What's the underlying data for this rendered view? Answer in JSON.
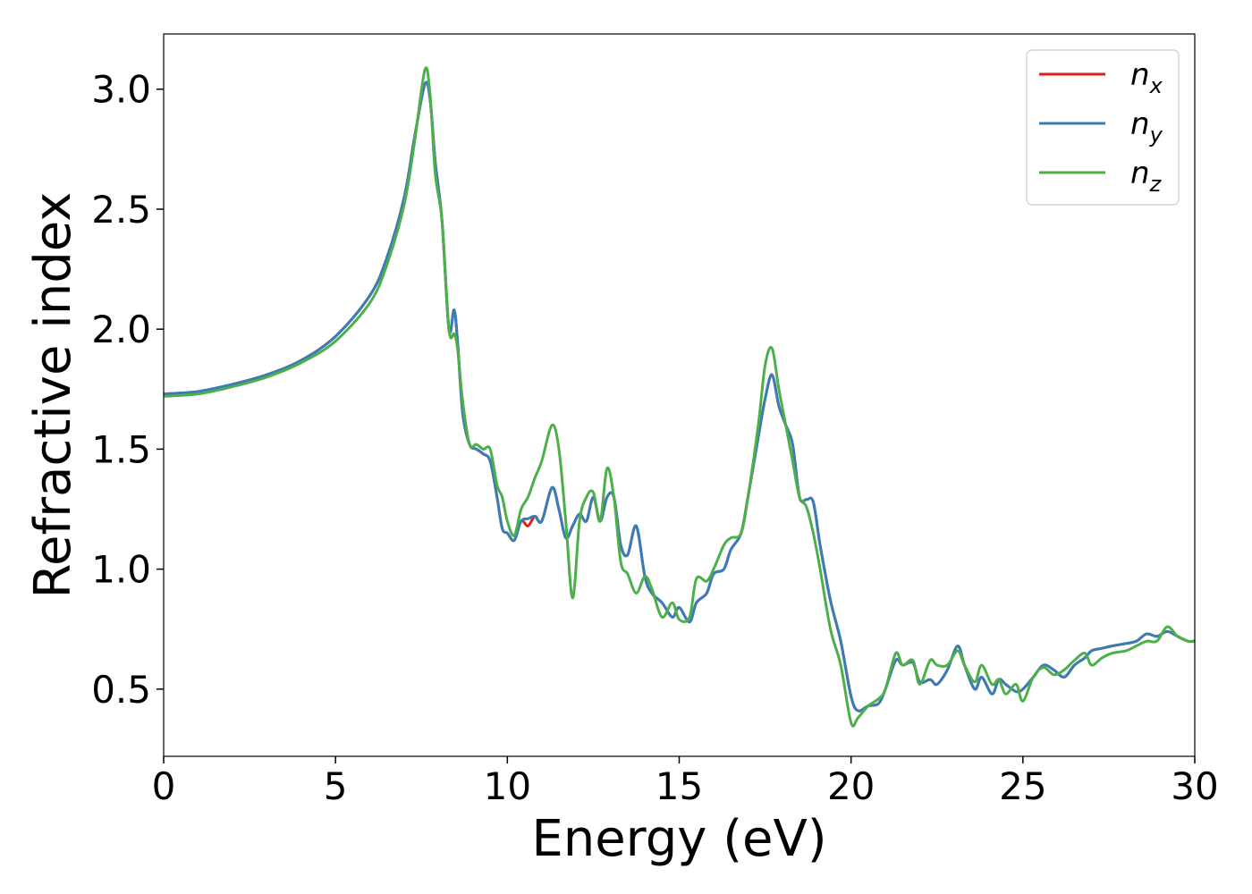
{
  "chart_data": {
    "type": "line",
    "xlabel": "Energy (eV)",
    "ylabel": "Refractive index",
    "xlim": [
      0,
      30
    ],
    "ylim": [
      0.22,
      3.23
    ],
    "xticks": [
      0,
      5,
      10,
      15,
      20,
      25,
      30
    ],
    "xtick_labels": [
      "0",
      "5",
      "10",
      "15",
      "20",
      "25",
      "30"
    ],
    "yticks": [
      0.5,
      1.0,
      1.5,
      2.0,
      2.5,
      3.0
    ],
    "ytick_labels": [
      "0.5",
      "1.0",
      "1.5",
      "2.0",
      "2.5",
      "3.0"
    ],
    "grid": false,
    "legend_position": "upper-right",
    "x": [
      0,
      1,
      2,
      3,
      4,
      5,
      6,
      6.5,
      7,
      7.3,
      7.6,
      7.75,
      7.9,
      8.1,
      8.3,
      8.45,
      8.55,
      8.7,
      8.9,
      9.1,
      9.3,
      9.5,
      9.7,
      9.85,
      10.0,
      10.2,
      10.4,
      10.6,
      10.8,
      11.0,
      11.3,
      11.5,
      11.7,
      11.9,
      12.1,
      12.3,
      12.5,
      12.7,
      12.9,
      13.1,
      13.3,
      13.5,
      13.75,
      14.0,
      14.2,
      14.5,
      14.8,
      15.0,
      15.3,
      15.5,
      15.8,
      16.0,
      16.3,
      16.5,
      16.8,
      17.0,
      17.3,
      17.5,
      17.7,
      17.9,
      18.1,
      18.3,
      18.5,
      18.7,
      18.9,
      19.1,
      19.4,
      19.7,
      20.0,
      20.2,
      20.5,
      20.8,
      21.0,
      21.3,
      21.5,
      21.8,
      22.0,
      22.3,
      22.5,
      22.8,
      23.1,
      23.3,
      23.6,
      23.8,
      24.1,
      24.3,
      24.5,
      24.8,
      25.0,
      25.3,
      25.6,
      25.9,
      26.2,
      26.5,
      26.8,
      27.0,
      27.3,
      27.6,
      28.0,
      28.3,
      28.6,
      28.9,
      29.2,
      29.5,
      29.8,
      30.0
    ],
    "series": [
      {
        "name": "n",
        "subscript": "x",
        "color": "#e41a1c",
        "values": [
          1.73,
          1.74,
          1.77,
          1.81,
          1.87,
          1.97,
          2.14,
          2.3,
          2.55,
          2.8,
          3.02,
          2.96,
          2.7,
          2.45,
          2.0,
          2.08,
          1.95,
          1.65,
          1.52,
          1.5,
          1.48,
          1.45,
          1.3,
          1.17,
          1.15,
          1.12,
          1.2,
          1.18,
          1.22,
          1.2,
          1.34,
          1.25,
          1.13,
          1.18,
          1.23,
          1.2,
          1.3,
          1.2,
          1.3,
          1.3,
          1.1,
          1.06,
          1.18,
          0.97,
          0.9,
          0.86,
          0.8,
          0.84,
          0.78,
          0.86,
          0.9,
          0.98,
          1.0,
          1.08,
          1.15,
          1.3,
          1.55,
          1.71,
          1.81,
          1.68,
          1.6,
          1.52,
          1.3,
          1.29,
          1.28,
          1.1,
          0.87,
          0.7,
          0.47,
          0.41,
          0.43,
          0.44,
          0.5,
          0.62,
          0.6,
          0.61,
          0.53,
          0.54,
          0.52,
          0.58,
          0.68,
          0.6,
          0.5,
          0.55,
          0.48,
          0.54,
          0.52,
          0.49,
          0.5,
          0.55,
          0.6,
          0.58,
          0.55,
          0.6,
          0.63,
          0.66,
          0.67,
          0.68,
          0.69,
          0.7,
          0.73,
          0.72,
          0.74,
          0.72,
          0.7,
          0.7
        ]
      },
      {
        "name": "n",
        "subscript": "y",
        "color": "#377eb8",
        "values": [
          1.73,
          1.74,
          1.77,
          1.81,
          1.87,
          1.97,
          2.14,
          2.3,
          2.55,
          2.8,
          3.02,
          2.96,
          2.7,
          2.45,
          2.0,
          2.08,
          1.95,
          1.65,
          1.52,
          1.5,
          1.48,
          1.45,
          1.3,
          1.17,
          1.15,
          1.12,
          1.2,
          1.21,
          1.22,
          1.2,
          1.34,
          1.25,
          1.13,
          1.18,
          1.23,
          1.2,
          1.3,
          1.2,
          1.3,
          1.3,
          1.1,
          1.06,
          1.18,
          0.97,
          0.9,
          0.86,
          0.8,
          0.84,
          0.78,
          0.86,
          0.9,
          0.98,
          1.0,
          1.08,
          1.15,
          1.3,
          1.55,
          1.71,
          1.81,
          1.68,
          1.6,
          1.52,
          1.3,
          1.29,
          1.28,
          1.1,
          0.87,
          0.7,
          0.47,
          0.41,
          0.43,
          0.44,
          0.5,
          0.62,
          0.6,
          0.61,
          0.53,
          0.54,
          0.52,
          0.58,
          0.68,
          0.6,
          0.5,
          0.55,
          0.48,
          0.54,
          0.52,
          0.49,
          0.5,
          0.55,
          0.6,
          0.58,
          0.55,
          0.6,
          0.63,
          0.66,
          0.67,
          0.68,
          0.69,
          0.7,
          0.73,
          0.72,
          0.74,
          0.72,
          0.7,
          0.7
        ]
      },
      {
        "name": "n",
        "subscript": "z",
        "color": "#4daf4a",
        "values": [
          1.72,
          1.73,
          1.76,
          1.8,
          1.86,
          1.95,
          2.11,
          2.27,
          2.52,
          2.78,
          3.08,
          2.98,
          2.65,
          2.45,
          2.0,
          1.98,
          1.92,
          1.7,
          1.52,
          1.52,
          1.5,
          1.5,
          1.35,
          1.3,
          1.2,
          1.14,
          1.25,
          1.3,
          1.38,
          1.45,
          1.6,
          1.5,
          1.2,
          0.88,
          1.2,
          1.3,
          1.32,
          1.2,
          1.42,
          1.3,
          1.03,
          0.98,
          0.9,
          0.97,
          0.92,
          0.8,
          0.86,
          0.79,
          0.8,
          0.96,
          0.95,
          1.0,
          1.1,
          1.13,
          1.15,
          1.3,
          1.6,
          1.85,
          1.92,
          1.75,
          1.6,
          1.45,
          1.3,
          1.26,
          1.15,
          1.0,
          0.75,
          0.6,
          0.36,
          0.38,
          0.43,
          0.46,
          0.5,
          0.65,
          0.6,
          0.62,
          0.52,
          0.62,
          0.6,
          0.6,
          0.66,
          0.6,
          0.53,
          0.6,
          0.52,
          0.54,
          0.48,
          0.52,
          0.45,
          0.55,
          0.59,
          0.56,
          0.58,
          0.62,
          0.65,
          0.6,
          0.63,
          0.65,
          0.66,
          0.68,
          0.7,
          0.7,
          0.76,
          0.72,
          0.7,
          0.7
        ]
      }
    ]
  }
}
